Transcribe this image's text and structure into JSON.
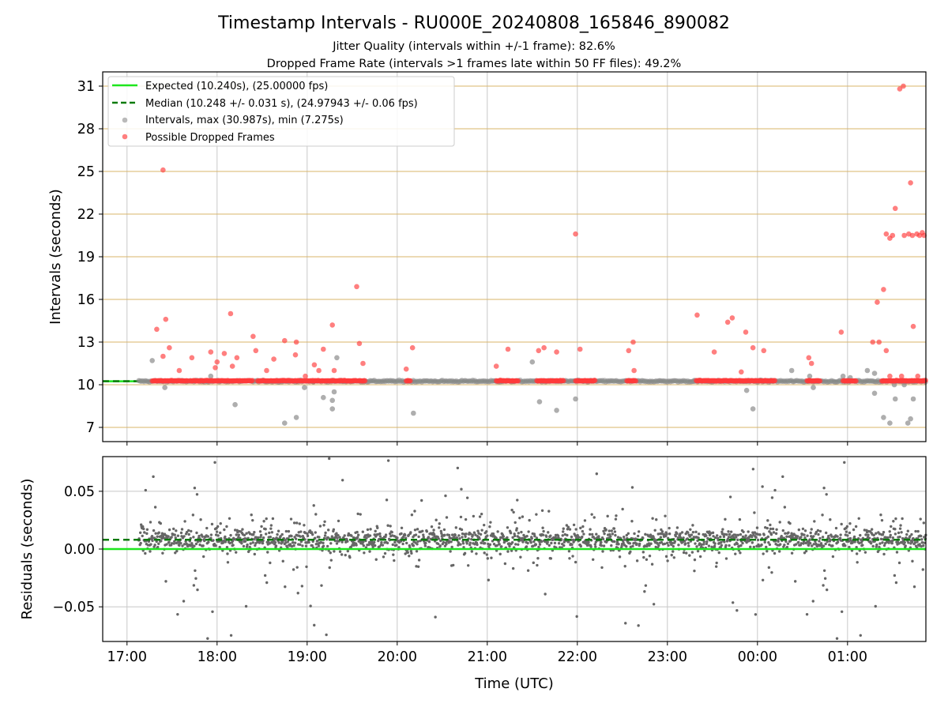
{
  "figure": {
    "title": "Timestamp Intervals - RU000E_20240808_165846_890082",
    "subtitle_1": "Jitter Quality (intervals within +/-1 frame): 82.6%",
    "subtitle_2": "Dropped Frame Rate (intervals >1 frames late within 50 FF files): 49.2%"
  },
  "colors": {
    "expected": "#1ee61e",
    "median": "#0a7a0a",
    "intervals": "#8c8c8c",
    "dropped": "#ff3b3b",
    "hgrid_top": "#d9b56a",
    "vgrid": "#c8c8c8",
    "residual_points": "#666666"
  },
  "chart_data": [
    {
      "type": "scatter",
      "ylabel": "Intervals (seconds)",
      "ylim": [
        6,
        32
      ],
      "yticks": [
        "7",
        "10",
        "13",
        "16",
        "19",
        "22",
        "25",
        "28",
        "31"
      ],
      "xlim_hours": [
        16.73,
        25.87
      ],
      "grid": true,
      "legend_position": "upper-left",
      "legend": [
        "Expected (10.240s), (25.00000 fps)",
        "Median (10.248 +/- 0.031 s), (24.97943 +/- 0.06 fps)",
        "Intervals, max (30.987s), min (7.275s)",
        "Possible Dropped Frames"
      ],
      "expected_value": 10.24,
      "median_value": 10.248,
      "interval_outliers": [
        [
          17.28,
          11.7
        ],
        [
          17.42,
          9.8
        ],
        [
          17.93,
          10.6
        ],
        [
          18.2,
          8.6
        ],
        [
          18.75,
          7.3
        ],
        [
          18.88,
          7.7
        ],
        [
          18.97,
          9.8
        ],
        [
          19.07,
          10.2
        ],
        [
          19.18,
          9.1
        ],
        [
          19.28,
          8.3
        ],
        [
          19.28,
          8.9
        ],
        [
          19.3,
          9.5
        ],
        [
          19.33,
          11.9
        ],
        [
          20.18,
          8.0
        ],
        [
          21.5,
          11.6
        ],
        [
          21.58,
          8.8
        ],
        [
          21.77,
          8.2
        ],
        [
          21.98,
          9.0
        ],
        [
          23.3,
          10.3
        ],
        [
          23.88,
          9.6
        ],
        [
          23.95,
          8.3
        ],
        [
          24.38,
          11.0
        ],
        [
          24.58,
          10.6
        ],
        [
          24.62,
          9.8
        ],
        [
          24.95,
          10.6
        ],
        [
          25.03,
          10.5
        ],
        [
          25.22,
          11.0
        ],
        [
          25.3,
          10.8
        ],
        [
          25.3,
          9.4
        ],
        [
          25.4,
          7.7
        ],
        [
          25.47,
          7.3
        ],
        [
          25.52,
          10.0
        ],
        [
          25.63,
          10.0
        ],
        [
          25.67,
          7.3
        ],
        [
          25.73,
          9.0
        ],
        [
          25.53,
          9.0
        ],
        [
          25.7,
          7.6
        ]
      ],
      "dropped_frames": [
        [
          17.33,
          13.9
        ],
        [
          17.4,
          25.1
        ],
        [
          17.43,
          14.6
        ],
        [
          17.4,
          12.0
        ],
        [
          17.47,
          12.6
        ],
        [
          17.58,
          11.0
        ],
        [
          17.72,
          11.9
        ],
        [
          17.93,
          12.3
        ],
        [
          17.98,
          11.2
        ],
        [
          18.0,
          11.6
        ],
        [
          18.08,
          12.2
        ],
        [
          18.15,
          15.0
        ],
        [
          18.17,
          11.3
        ],
        [
          18.22,
          11.9
        ],
        [
          18.4,
          13.4
        ],
        [
          18.43,
          12.4
        ],
        [
          18.55,
          11.0
        ],
        [
          18.63,
          11.8
        ],
        [
          18.75,
          13.1
        ],
        [
          18.88,
          13.0
        ],
        [
          18.87,
          12.1
        ],
        [
          18.98,
          10.6
        ],
        [
          19.08,
          11.4
        ],
        [
          19.13,
          11.0
        ],
        [
          19.18,
          12.5
        ],
        [
          19.28,
          14.2
        ],
        [
          19.3,
          11.0
        ],
        [
          19.55,
          16.9
        ],
        [
          19.58,
          12.9
        ],
        [
          19.62,
          11.5
        ],
        [
          20.1,
          11.1
        ],
        [
          20.17,
          12.6
        ],
        [
          21.1,
          11.3
        ],
        [
          21.23,
          12.5
        ],
        [
          21.57,
          12.4
        ],
        [
          21.63,
          12.6
        ],
        [
          21.77,
          12.3
        ],
        [
          21.98,
          20.6
        ],
        [
          22.03,
          12.5
        ],
        [
          22.57,
          12.4
        ],
        [
          22.62,
          13.0
        ],
        [
          22.63,
          11.0
        ],
        [
          23.33,
          14.9
        ],
        [
          23.52,
          12.3
        ],
        [
          23.67,
          14.4
        ],
        [
          23.72,
          14.7
        ],
        [
          23.82,
          10.9
        ],
        [
          23.87,
          13.7
        ],
        [
          23.95,
          12.6
        ],
        [
          24.07,
          12.4
        ],
        [
          24.57,
          11.9
        ],
        [
          24.6,
          11.5
        ],
        [
          24.93,
          13.7
        ],
        [
          25.28,
          13.0
        ],
        [
          25.35,
          13.0
        ],
        [
          25.33,
          15.8
        ],
        [
          25.4,
          16.7
        ],
        [
          25.43,
          20.6
        ],
        [
          25.47,
          20.3
        ],
        [
          25.5,
          20.5
        ],
        [
          25.53,
          22.4
        ],
        [
          25.58,
          30.8
        ],
        [
          25.62,
          31.0
        ],
        [
          25.63,
          20.5
        ],
        [
          25.68,
          20.6
        ],
        [
          25.7,
          24.2
        ],
        [
          25.73,
          14.1
        ],
        [
          25.72,
          20.5
        ],
        [
          25.77,
          20.6
        ],
        [
          25.8,
          20.5
        ],
        [
          25.83,
          20.7
        ],
        [
          25.85,
          20.5
        ],
        [
          25.43,
          12.4
        ],
        [
          25.47,
          10.6
        ],
        [
          25.6,
          10.6
        ],
        [
          25.78,
          10.6
        ]
      ]
    },
    {
      "type": "scatter",
      "ylabel": "Residuals (seconds)",
      "xlabel": "Time (UTC)",
      "ylim": [
        -0.08,
        0.08
      ],
      "yticks": [
        "0.05",
        "0.00",
        "−0.05"
      ],
      "xticks": [
        "17:00",
        "18:00",
        "19:00",
        "20:00",
        "21:00",
        "22:00",
        "23:00",
        "00:00",
        "01:00"
      ],
      "xlim_hours": [
        16.73,
        25.87
      ],
      "grid": true,
      "expected_residual": 0.0,
      "median_residual": 0.008,
      "residual_spread": "dense cluster between -0.01 and 0.03 with scattered points to +/-0.08"
    }
  ]
}
